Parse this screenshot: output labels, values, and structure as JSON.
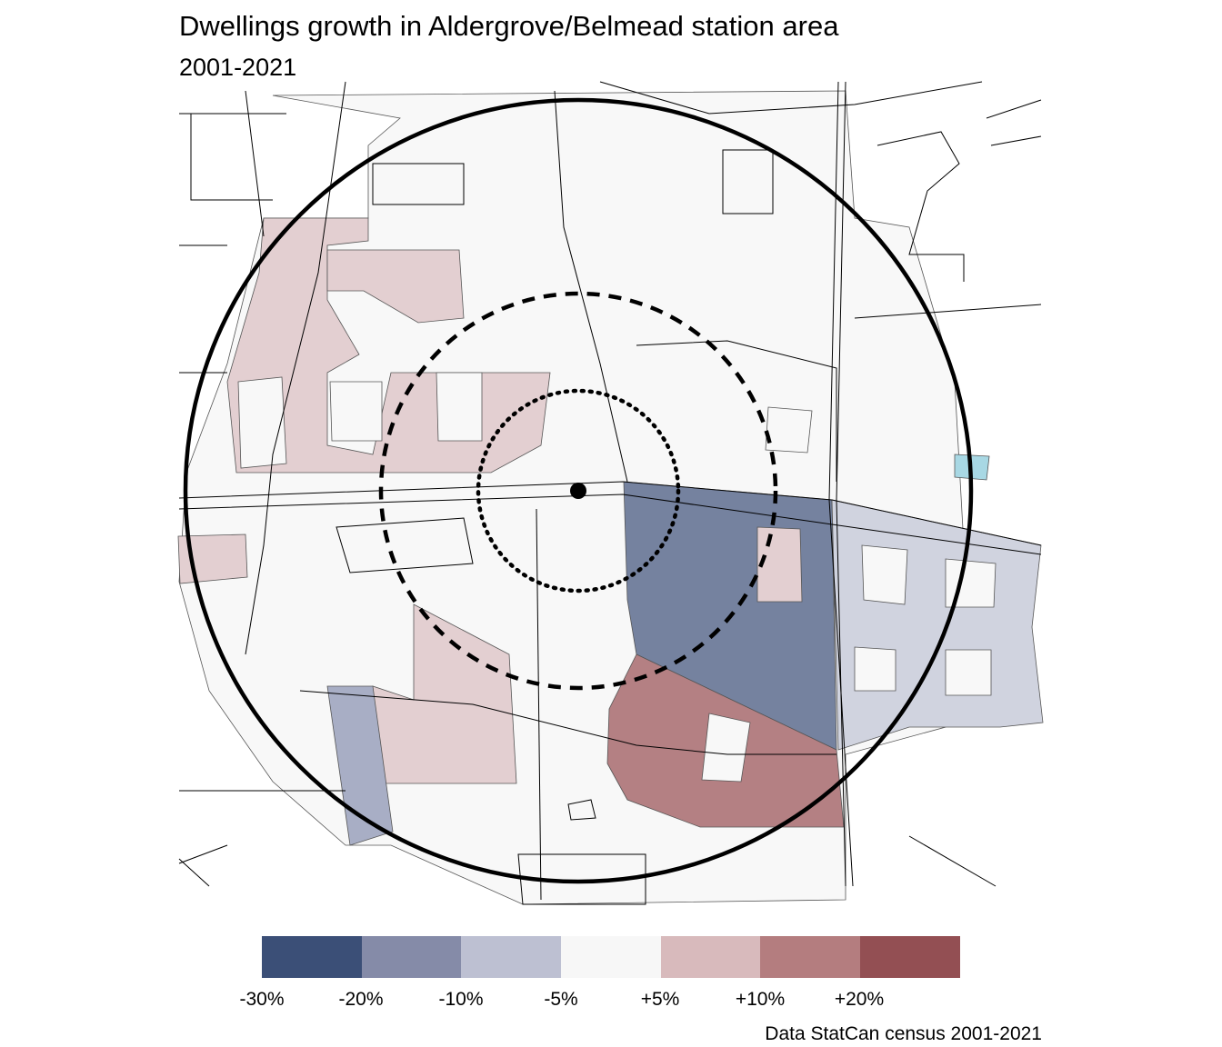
{
  "title": "Dwellings growth in Aldergrove/Belmead station area",
  "subtitle": "2001-2021",
  "caption": "Data StatCan census 2001-2021",
  "legend": {
    "colors": [
      "#3b4f77",
      "#858ba8",
      "#bdc0d2",
      "#f7f7f7",
      "#d8babc",
      "#b47d7f",
      "#934f53"
    ],
    "labels": [
      "-30%",
      "-20%",
      "-10%",
      "-5%",
      "+5%",
      "+10%",
      "+20%"
    ]
  },
  "map": {
    "rings": [
      "outer-solid",
      "middle-dashed",
      "inner-dotted"
    ],
    "station_marker": "station-dot"
  }
}
